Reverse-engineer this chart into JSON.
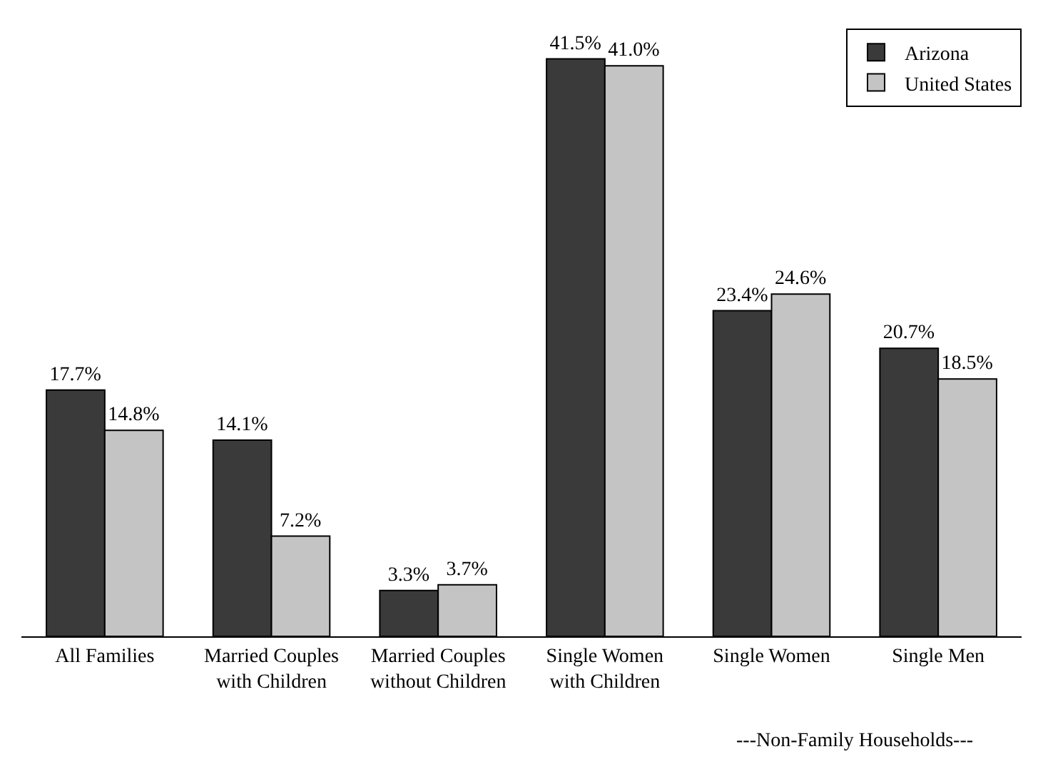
{
  "chart_data": {
    "type": "bar",
    "categories": [
      "All Families",
      "Married Couples\nwith Children",
      "Married Couples\nwithout Children",
      "Single Women\nwith Children",
      "Single Women",
      "Single Men"
    ],
    "series": [
      {
        "name": "Arizona",
        "color": "#3a3a3a",
        "values": [
          17.7,
          14.1,
          3.3,
          41.5,
          23.4,
          20.7
        ],
        "value_labels": [
          "17.7%",
          "14.1%",
          "3.3%",
          "41.5%",
          "23.4%",
          "20.7%"
        ]
      },
      {
        "name": "United States",
        "color": "#c4c4c4",
        "values": [
          14.8,
          7.2,
          3.7,
          41.0,
          24.6,
          18.5
        ],
        "value_labels": [
          "14.8%",
          "7.2%",
          "3.7%",
          "41.0%",
          "24.6%",
          "18.5%"
        ]
      }
    ],
    "annotations": [
      "---Non-Family Households---"
    ],
    "legend": "top right"
  }
}
